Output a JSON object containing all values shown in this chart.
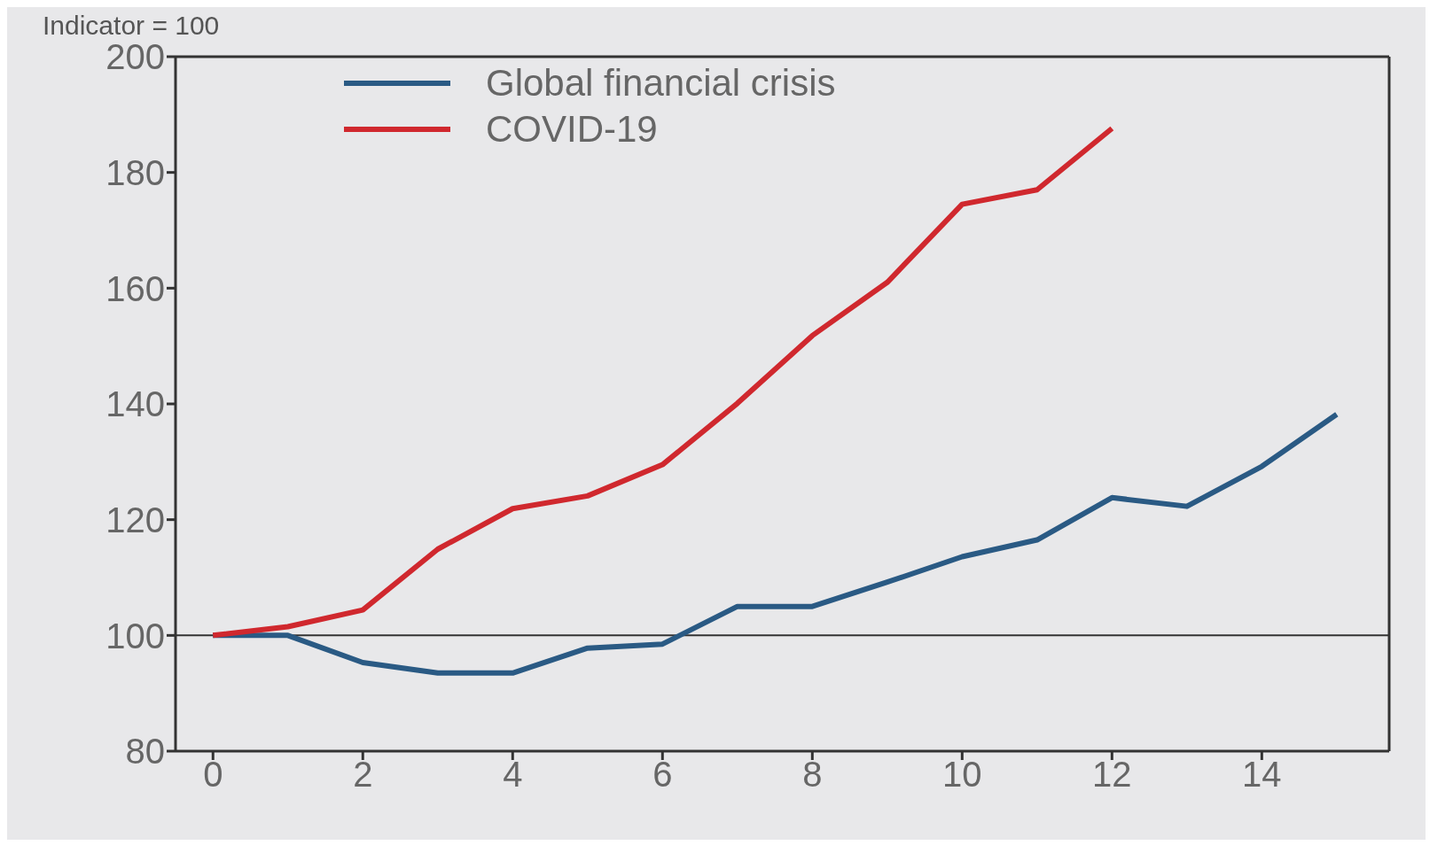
{
  "chart_data": {
    "type": "line",
    "subtitle": "Indicator = 100",
    "x": [
      0,
      1,
      2,
      3,
      4,
      5,
      6,
      7,
      8,
      9,
      10,
      11,
      12,
      13,
      14,
      15
    ],
    "series": [
      {
        "name": "Global financial crisis",
        "color": "#2a5a84",
        "values": [
          100,
          100,
          95.3,
          93.5,
          93.5,
          97.8,
          98.5,
          105,
          105,
          109.2,
          113.6,
          116.5,
          123.8,
          122.3,
          129.2,
          138.2
        ]
      },
      {
        "name": "COVID-19",
        "color": "#d0282e",
        "values": [
          100,
          101.5,
          104.4,
          114.9,
          121.9,
          124.1,
          129.5,
          140.1,
          151.8,
          161,
          174.5,
          177,
          187.6,
          null,
          null,
          null
        ]
      }
    ],
    "xlim": [
      -0.5,
      15.7
    ],
    "xticks": [
      0,
      2,
      4,
      6,
      8,
      10,
      12,
      14
    ],
    "ylim": [
      80,
      200
    ],
    "yticks": [
      80,
      100,
      120,
      140,
      160,
      180,
      200
    ],
    "ref_lines": [
      {
        "axis": "y",
        "value": 100,
        "color": "#333333"
      }
    ],
    "legend": "top left",
    "marker": "none",
    "line_style": "solid"
  }
}
